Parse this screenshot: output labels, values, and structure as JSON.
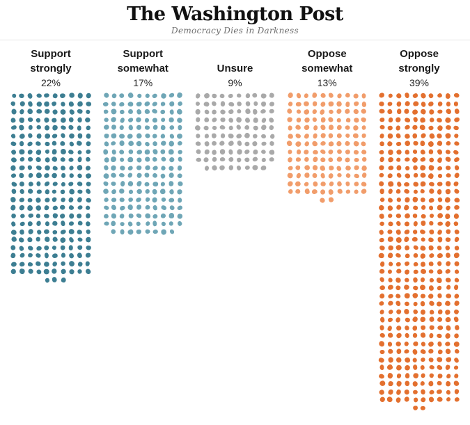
{
  "header": {
    "logo": "The Washington Post",
    "tagline": "Democracy Dies in Darkness"
  },
  "chart_data": {
    "type": "bar",
    "style": "dot-matrix",
    "title": "",
    "dots_per_row": 10,
    "categories": [
      {
        "label_line1": "Support",
        "label_line2": "strongly",
        "pct_label": "22%",
        "value_pct": 22,
        "color": "#3d7e92",
        "full_rows": 23,
        "partial_row_dots": 3,
        "partial_row_start": 4
      },
      {
        "label_line1": "Support",
        "label_line2": "somewhat",
        "pct_label": "17%",
        "value_pct": 17,
        "color": "#6fa6b6",
        "full_rows": 17,
        "partial_row_dots": 8,
        "partial_row_start": 1
      },
      {
        "label_line1": "",
        "label_line2": "Unsure",
        "pct_label": "9%",
        "value_pct": 9,
        "color": "#a9a9a9",
        "full_rows": 9,
        "partial_row_dots": 8,
        "partial_row_start": 1
      },
      {
        "label_line1": "Oppose",
        "label_line2": "somewhat",
        "pct_label": "13%",
        "value_pct": 13,
        "color": "#f19d6b",
        "full_rows": 13,
        "partial_row_dots": 2,
        "partial_row_start": 4
      },
      {
        "label_line1": "Oppose",
        "label_line2": "strongly",
        "pct_label": "39%",
        "value_pct": 39,
        "color": "#e3702f",
        "full_rows": 39,
        "partial_row_dots": 2,
        "partial_row_start": 4
      }
    ]
  }
}
